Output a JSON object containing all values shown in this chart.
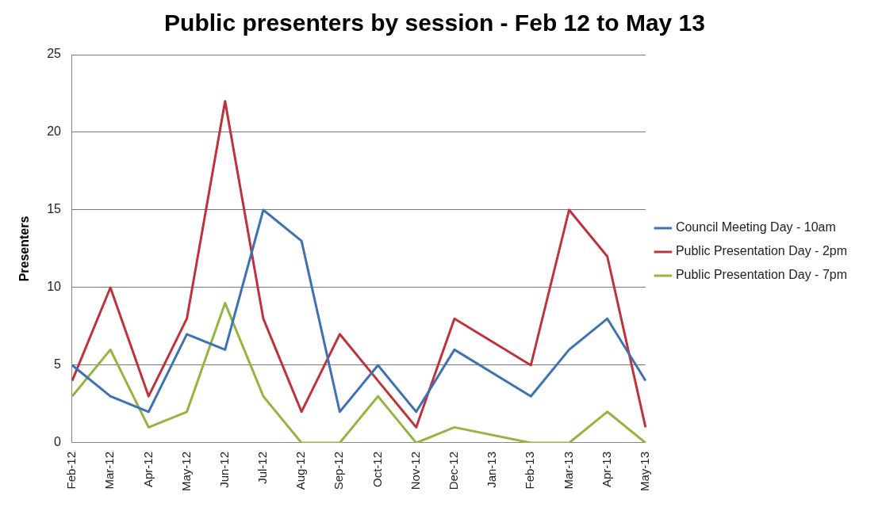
{
  "chart_data": {
    "type": "line",
    "title": "Public presenters by session - Feb 12 to May 13",
    "ylabel": "Presenters",
    "categories": [
      "Feb-12",
      "Mar-12",
      "Apr-12",
      "May-12",
      "Jun-12",
      "Jul-12",
      "Aug-12",
      "Sep-12",
      "Oct-12",
      "Nov-12",
      "Dec-12",
      "Jan-13",
      "Feb-13",
      "Mar-13",
      "Apr-13",
      "May-13"
    ],
    "series": [
      {
        "name": "Council Meeting Day - 10am",
        "color": "#3d72b4",
        "values": [
          5,
          3,
          2,
          7,
          6,
          15,
          13,
          2,
          5,
          2,
          6,
          null,
          3,
          6,
          8,
          4
        ]
      },
      {
        "name": "Public Presentation Day - 2pm",
        "color": "#c0323a",
        "values": [
          4,
          10,
          3,
          8,
          22,
          8,
          2,
          7,
          4,
          1,
          8,
          null,
          5,
          15,
          12,
          1
        ]
      },
      {
        "name": "Public Presentation Day - 7pm",
        "color": "#94b540",
        "values": [
          3,
          6,
          1,
          2,
          9,
          3,
          0,
          0,
          3,
          0,
          1,
          null,
          0,
          0,
          2,
          0
        ]
      }
    ],
    "ylim": [
      0,
      25
    ],
    "yticks": [
      0,
      5,
      10,
      15,
      20,
      25
    ],
    "grid": "y",
    "legend": "right",
    "marker": "none",
    "line_style": "solid"
  }
}
